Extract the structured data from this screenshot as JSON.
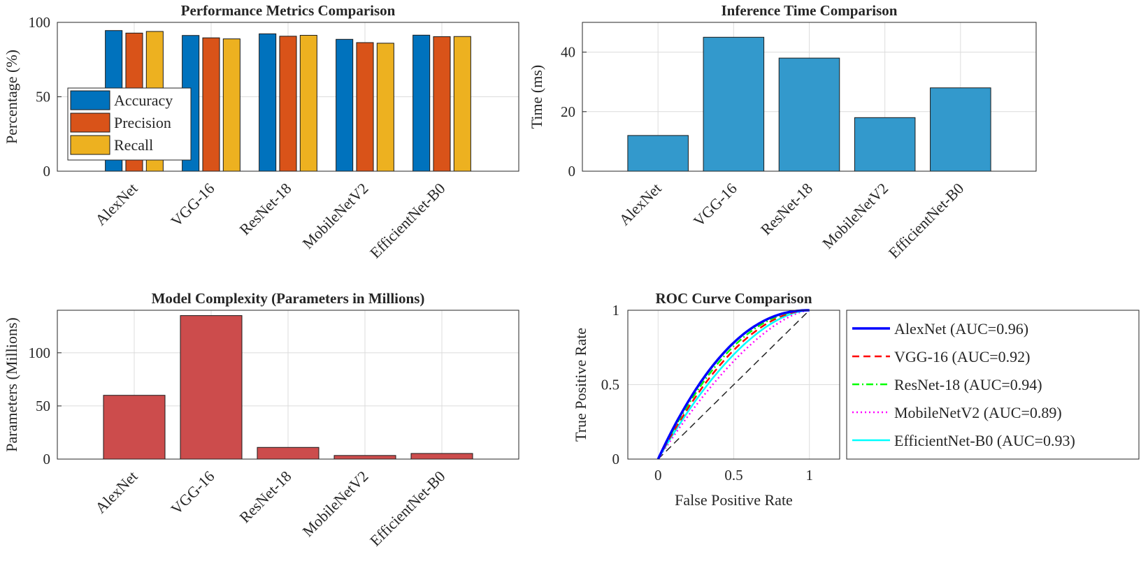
{
  "chart_data": [
    {
      "type": "bar",
      "title": "Performance Metrics Comparison",
      "xlabel": "",
      "ylabel": "Percentage (%)",
      "ylim": [
        0,
        100
      ],
      "yticks": [
        0,
        50,
        100
      ],
      "grid": true,
      "legend_position": "west",
      "categories": [
        "AlexNet",
        "VGG-16",
        "ResNet-18",
        "MobileNetV2",
        "EfficientNet-B0"
      ],
      "series": [
        {
          "name": "Accuracy",
          "color": "#0072BD",
          "values": [
            94.5,
            91.2,
            92.3,
            88.6,
            91.4
          ]
        },
        {
          "name": "Precision",
          "color": "#D95319",
          "values": [
            92.8,
            89.6,
            90.7,
            86.4,
            90.4
          ]
        },
        {
          "name": "Recall",
          "color": "#EDB120",
          "values": [
            93.9,
            88.9,
            91.3,
            86.0,
            90.5
          ]
        }
      ]
    },
    {
      "type": "bar",
      "title": "Inference Time Comparison",
      "xlabel": "",
      "ylabel": "Time (ms)",
      "ylim": [
        0,
        50
      ],
      "yticks": [
        0,
        20,
        40
      ],
      "grid": true,
      "categories": [
        "AlexNet",
        "VGG-16",
        "ResNet-18",
        "MobileNetV2",
        "EfficientNet-B0"
      ],
      "series": [
        {
          "name": "Time",
          "color": "#3399CC",
          "values": [
            12,
            45,
            38,
            18,
            28
          ]
        }
      ]
    },
    {
      "type": "bar",
      "title": "Model Complexity (Parameters in Millions)",
      "xlabel": "",
      "ylabel": "Parameters (Millions)",
      "ylim": [
        0,
        140
      ],
      "yticks": [
        0,
        50,
        100
      ],
      "grid": true,
      "categories": [
        "AlexNet",
        "VGG-16",
        "ResNet-18",
        "MobileNetV2",
        "EfficientNet-B0"
      ],
      "series": [
        {
          "name": "Parameters",
          "color": "#CC4C4C",
          "values": [
            60,
            135,
            11,
            3.4,
            5.3
          ]
        }
      ]
    },
    {
      "type": "line",
      "title": "ROC Curve Comparison",
      "xlabel": "False Positive Rate",
      "ylabel": "True Positive Rate",
      "xlim": [
        -0.2,
        1.2
      ],
      "ylim": [
        0,
        1
      ],
      "xticks": [
        0,
        0.5,
        1
      ],
      "yticks": [
        0,
        0.5,
        1
      ],
      "grid": true,
      "legend_position": "outside-right",
      "series": [
        {
          "name": "AlexNet (AUC=0.96)",
          "color": "#0000FF",
          "dash": "solid",
          "width": 3.5,
          "exponent": 2.2
        },
        {
          "name": "VGG-16 (AUC=0.92)",
          "color": "#FF0000",
          "dash": "dashed",
          "width": 2.5,
          "exponent": 1.9
        },
        {
          "name": "ResNet-18 (AUC=0.94)",
          "color": "#00FF00",
          "dash": "dashdot",
          "width": 2.5,
          "exponent": 2.05
        },
        {
          "name": "MobileNetV2 (AUC=0.89)",
          "color": "#FF00FF",
          "dash": "dotted",
          "width": 2.5,
          "exponent": 1.55
        },
        {
          "name": "EfficientNet-B0 (AUC=0.93)",
          "color": "#00FFFF",
          "dash": "solid",
          "width": 2.5,
          "exponent": 1.75
        },
        {
          "name": "Random",
          "color": "#262626",
          "dash": "dashed",
          "width": 1.5,
          "exponent": 1,
          "in_legend": false
        }
      ]
    }
  ]
}
